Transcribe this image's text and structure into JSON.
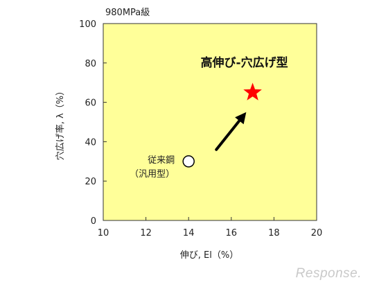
{
  "chart_data": {
    "type": "scatter",
    "title": "980MPa級",
    "xlabel": "伸び, El（%）",
    "ylabel": "穴広げ率, λ（%）",
    "xlim": [
      10,
      20
    ],
    "ylim": [
      0,
      100
    ],
    "xticks": [
      10,
      12,
      14,
      16,
      18,
      20
    ],
    "yticks": [
      0,
      20,
      40,
      60,
      80,
      100
    ],
    "grid": false,
    "background_color": "#ffff99",
    "points": [
      {
        "name": "従来鋼",
        "name_sub": "（汎用型）",
        "x": 14,
        "y": 30,
        "marker": "open-circle",
        "color": "#ffffff"
      },
      {
        "name": "高伸び-穴広げ型",
        "x": 17,
        "y": 65,
        "marker": "star",
        "color": "#ff0000"
      }
    ],
    "arrow": {
      "from": [
        15.3,
        36
      ],
      "to": [
        16.7,
        55
      ]
    }
  },
  "watermark": "Response."
}
